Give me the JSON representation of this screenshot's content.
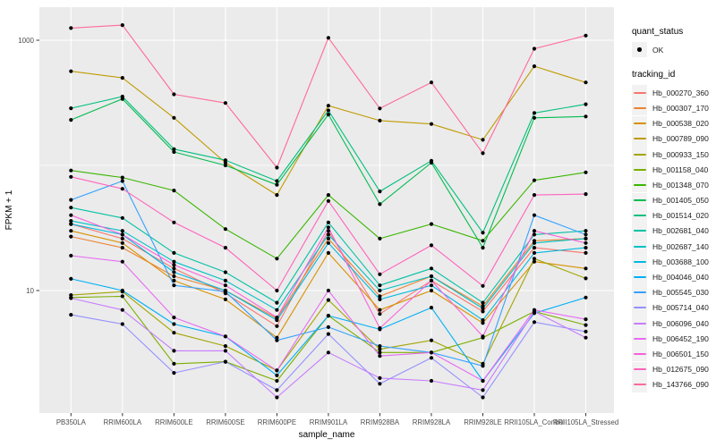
{
  "figure": {
    "kind": "ggplot2 line plot with points, log10 y scale",
    "background": "#ffffff"
  },
  "colors": {
    "panel_bg": "#ebebeb",
    "grid": "#ffffff",
    "legend_key_bg": "#f2f2f2",
    "axis_text": "#4d4d4d",
    "axis_title": "#000000",
    "point": "#000000"
  },
  "legend": {
    "quant_status_title": "quant_status",
    "quant_status_items": [
      {
        "label": "OK",
        "marker": "black-point"
      }
    ],
    "tracking_id_title": "tracking_id"
  },
  "chart_data": {
    "type": "line",
    "title": "",
    "xlabel": "sample_name",
    "ylabel": "FPKM + 1",
    "y_scale": "log10",
    "y_tick_labels": [
      "1000",
      "10"
    ],
    "y_ticks": [
      1000,
      10
    ],
    "y_minor_gridlines": [
      100
    ],
    "ylim": [
      1.05,
      1840
    ],
    "grid": true,
    "legend_position": "right",
    "marker": "black point at every vertex (quant_status = OK)",
    "categories": [
      "PB350LA",
      "RRIM600LA",
      "RRIM600LE",
      "RRIM600SE",
      "RRIM600PE",
      "RRIM901LA",
      "RRIM928BA",
      "RRIM928LA",
      "RRIM928LE",
      "RRII105LA_Control",
      "RRII105LA_Stressed"
    ],
    "series": [
      {
        "name": "Hb_000270_360",
        "color": "#F8766D",
        "values": [
          34,
          26,
          15,
          9.5,
          5.2,
          30,
          6.5,
          12,
          6.8,
          22,
          20
        ]
      },
      {
        "name": "Hb_000307_170",
        "color": "#EA8331",
        "values": [
          27,
          22,
          13,
          10,
          6.0,
          26,
          9,
          13,
          7.5,
          25,
          26
        ]
      },
      {
        "name": "Hb_000538_020",
        "color": "#D89000",
        "values": [
          30,
          24,
          12,
          8.5,
          4.2,
          20,
          7,
          10,
          5.5,
          17,
          15
        ]
      },
      {
        "name": "Hb_000789_090",
        "color": "#C09B00",
        "values": [
          565,
          500,
          240,
          105,
          58,
          300,
          228,
          214,
          160,
          620,
          460
        ]
      },
      {
        "name": "Hb_000933_150",
        "color": "#A3A500",
        "values": [
          9.2,
          9.8,
          4.6,
          3.6,
          2.3,
          8.4,
          3.4,
          4.0,
          2.6,
          18,
          12.5
        ]
      },
      {
        "name": "Hb_001158_040",
        "color": "#7CAE00",
        "values": [
          8.8,
          9.0,
          2.6,
          2.7,
          1.9,
          6.3,
          3.2,
          3.2,
          4.2,
          6.8,
          5.3
        ]
      },
      {
        "name": "Hb_001348_070",
        "color": "#39B600",
        "values": [
          91,
          80,
          63,
          31,
          18,
          58,
          26,
          34,
          25,
          76,
          88
        ]
      },
      {
        "name": "Hb_001405_050",
        "color": "#00BB4E",
        "values": [
          231,
          340,
          128,
          100,
          70,
          255,
          49,
          105,
          22,
          240,
          246
        ]
      },
      {
        "name": "Hb_001514_020",
        "color": "#00BF7D",
        "values": [
          286,
          355,
          135,
          110,
          75,
          275,
          62,
          109,
          29,
          262,
          308
        ]
      },
      {
        "name": "Hb_002681_040",
        "color": "#00C1A3",
        "values": [
          46,
          38,
          20,
          14,
          8.0,
          35,
          11,
          15,
          8.0,
          28,
          30
        ]
      },
      {
        "name": "Hb_002687_140",
        "color": "#00BFC4",
        "values": [
          36,
          30,
          17,
          12,
          7.0,
          28,
          10,
          13,
          7.2,
          24,
          26
        ]
      },
      {
        "name": "Hb_003688_100",
        "color": "#00BAE0",
        "values": [
          34,
          28,
          14,
          10,
          5.8,
          24,
          8.5,
          11,
          5.8,
          20,
          22
        ]
      },
      {
        "name": "Hb_004046_040",
        "color": "#00B0F6",
        "values": [
          12.4,
          10,
          5.4,
          4.3,
          2.1,
          6.3,
          4.9,
          7.3,
          1.9,
          6.6,
          8.8
        ]
      },
      {
        "name": "Hb_005545_030",
        "color": "#35A2FF",
        "values": [
          53,
          75,
          11,
          9.8,
          4.0,
          5.1,
          3.6,
          3.2,
          2.5,
          40,
          28
        ]
      },
      {
        "name": "Hb_005714_040",
        "color": "#9590FF",
        "values": [
          6.4,
          5.4,
          2.2,
          2.7,
          1.6,
          4.5,
          1.8,
          2.9,
          1.4,
          5.6,
          4.7
        ]
      },
      {
        "name": "Hb_006096_040",
        "color": "#C77CFF",
        "values": [
          8.7,
          7.0,
          3.3,
          3.3,
          1.4,
          3.2,
          2.0,
          1.9,
          1.6,
          6.8,
          4.2
        ]
      },
      {
        "name": "Hb_006452_190",
        "color": "#E76BF3",
        "values": [
          19,
          17,
          6.1,
          4.3,
          2.3,
          10,
          3.0,
          3.2,
          1.9,
          7.0,
          5.9
        ]
      },
      {
        "name": "Hb_006501_150",
        "color": "#FA62DB",
        "values": [
          40,
          28,
          16,
          11,
          6.1,
          32,
          5.0,
          12,
          4.3,
          30,
          24
        ]
      },
      {
        "name": "Hb_012675_090",
        "color": "#FF62BC",
        "values": [
          81,
          65,
          35,
          22,
          10,
          52,
          13.5,
          23,
          10.9,
          58,
          59
        ]
      },
      {
        "name": "Hb_143766_090",
        "color": "#FF6A98",
        "values": [
          1250,
          1320,
          370,
          315,
          96,
          1045,
          285,
          460,
          125,
          855,
          1090
        ]
      }
    ]
  }
}
